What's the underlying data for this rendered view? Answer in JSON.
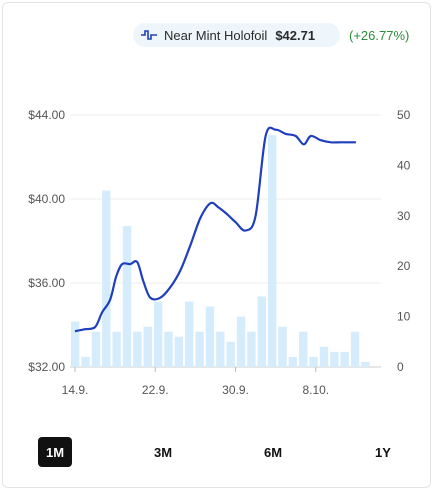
{
  "legend": {
    "series_name": "Near Mint Holofoil",
    "price": "$42.71",
    "change": "(+26.77%)",
    "line_color": "#1f3fbf",
    "bar_color": "#d4ecfb",
    "change_color": "#2e8b3d"
  },
  "ranges": [
    {
      "label": "1M",
      "active": true
    },
    {
      "label": "3M",
      "active": false
    },
    {
      "label": "6M",
      "active": false
    },
    {
      "label": "1Y",
      "active": false
    }
  ],
  "chart_data": {
    "type": "line",
    "x_tick_labels": [
      "14.9.",
      "22.9.",
      "30.9.",
      "8.10."
    ],
    "y_left": {
      "ticks": [
        "$32.00",
        "$36.00",
        "$40.00",
        "$44.00"
      ],
      "range": [
        32,
        44
      ]
    },
    "y_right": {
      "ticks": [
        "0",
        "10",
        "20",
        "30",
        "40",
        "50"
      ],
      "range": [
        0,
        50
      ]
    },
    "x_range": [
      0,
      31
    ],
    "series": [
      {
        "type": "line",
        "axis": "left",
        "points": [
          [
            0.5,
            33.7
          ],
          [
            1.5,
            33.8
          ],
          [
            2.5,
            33.9
          ],
          [
            3.2,
            34.6
          ],
          [
            4,
            35.2
          ],
          [
            4.6,
            36.3
          ],
          [
            5.2,
            36.9
          ],
          [
            6,
            36.9
          ],
          [
            6.7,
            37.0
          ],
          [
            7.3,
            36.1
          ],
          [
            8,
            35.3
          ],
          [
            9,
            35.3
          ],
          [
            10,
            35.8
          ],
          [
            11,
            36.6
          ],
          [
            12,
            37.8
          ],
          [
            13,
            39.1
          ],
          [
            14,
            39.8
          ],
          [
            14.8,
            39.6
          ],
          [
            15.6,
            39.3
          ],
          [
            16.5,
            38.9
          ],
          [
            17.5,
            38.5
          ],
          [
            18.5,
            39.2
          ],
          [
            19.5,
            43.0
          ],
          [
            20.5,
            43.3
          ],
          [
            21.5,
            43.1
          ],
          [
            22.5,
            43.0
          ],
          [
            23.3,
            42.6
          ],
          [
            24,
            43.0
          ],
          [
            25,
            42.8
          ],
          [
            26,
            42.7
          ],
          [
            27,
            42.7
          ],
          [
            28.5,
            42.7
          ]
        ]
      },
      {
        "type": "bar",
        "axis": "right",
        "x": [
          0,
          1,
          2,
          3,
          4,
          5,
          6,
          7,
          8,
          9,
          10,
          11,
          12,
          13,
          14,
          15,
          16,
          17,
          18,
          19,
          20,
          21,
          22,
          23,
          24,
          25,
          26,
          27,
          28,
          29
        ],
        "values": [
          9,
          2,
          7,
          35,
          7,
          28,
          7,
          8,
          13,
          7,
          6,
          13,
          7,
          12,
          7,
          5,
          10,
          7,
          14,
          46,
          8,
          2,
          7,
          2,
          4,
          3,
          3,
          7,
          1,
          0
        ]
      }
    ]
  }
}
